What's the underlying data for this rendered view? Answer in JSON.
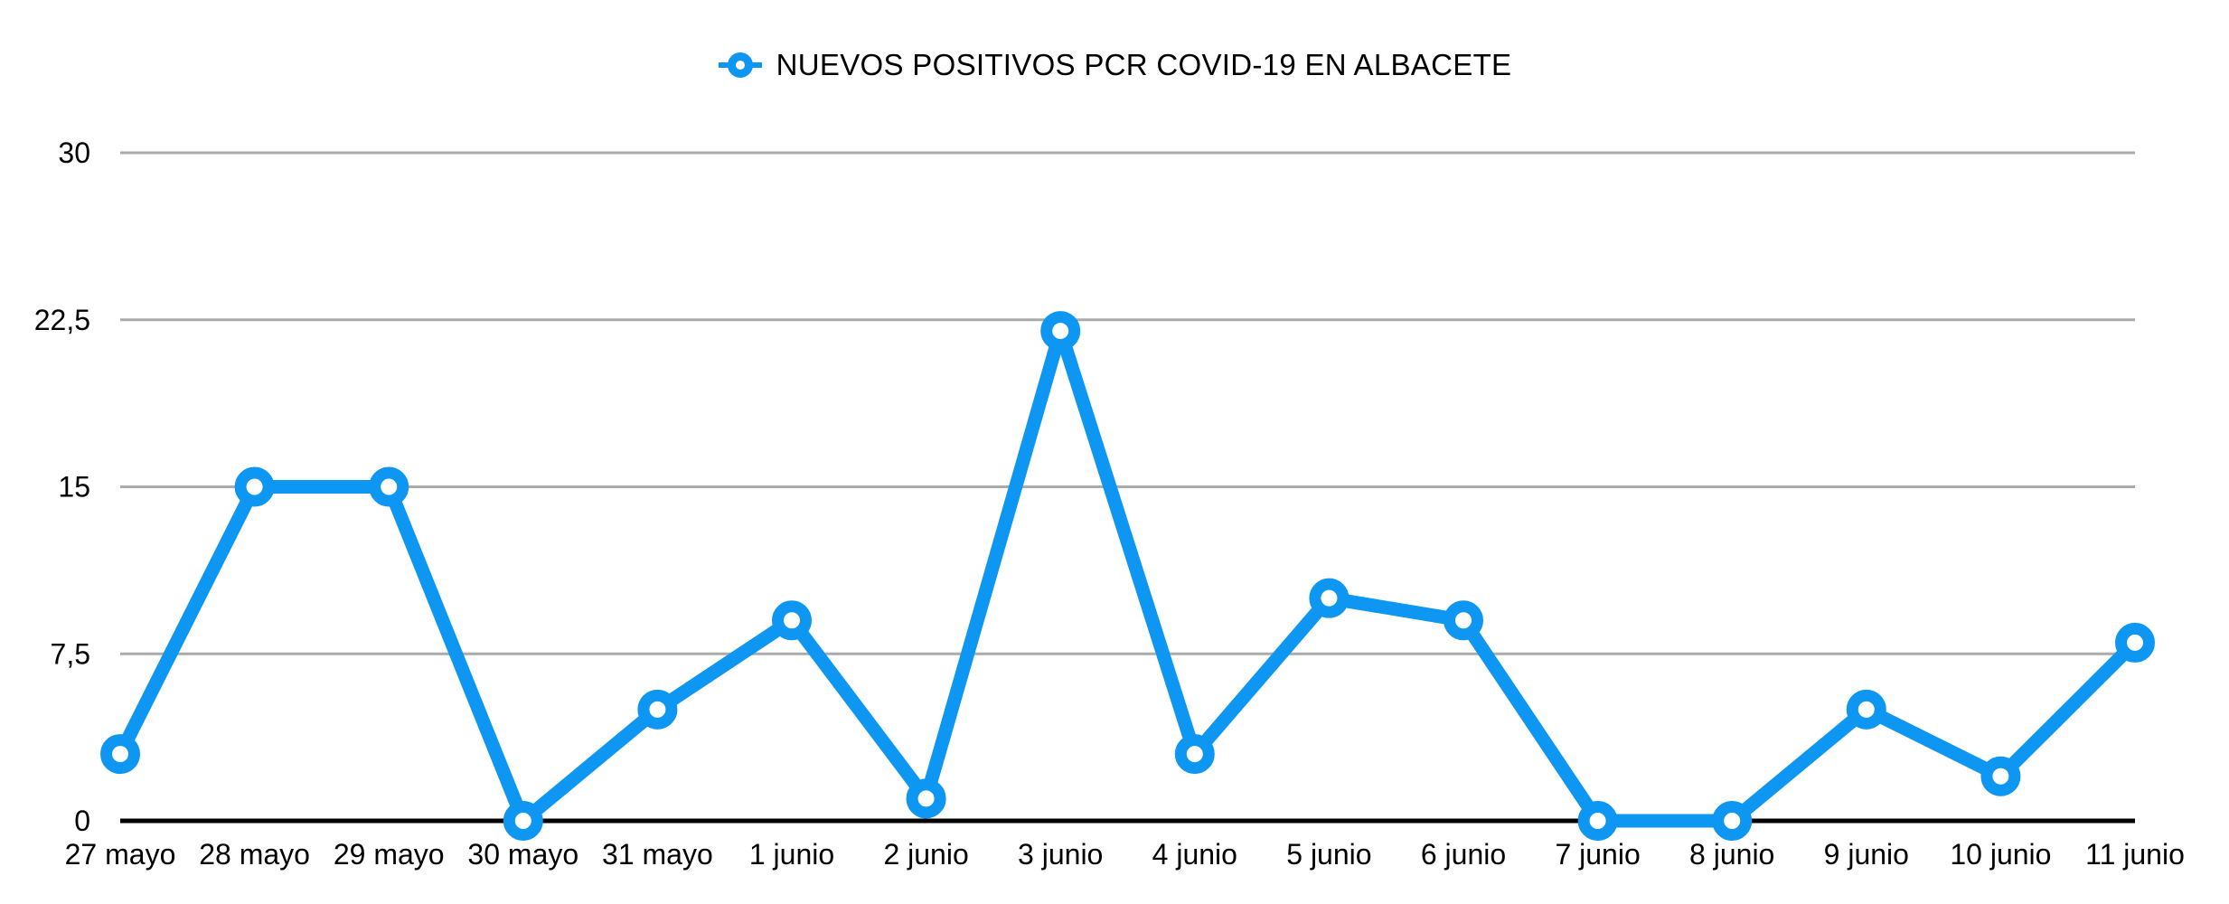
{
  "legend": {
    "label": "NUEVOS POSITIVOS PCR COVID-19 EN ALBACETE"
  },
  "chart_data": {
    "type": "line",
    "title": "NUEVOS POSITIVOS PCR COVID-19 EN ALBACETE",
    "categories": [
      "27 mayo",
      "28 mayo",
      "29 mayo",
      "30 mayo",
      "31 mayo",
      "1 junio",
      "2 junio",
      "3 junio",
      "4 junio",
      "5 junio",
      "6 junio",
      "7 junio",
      "8 junio",
      "9 junio",
      "10 junio",
      "11 junio"
    ],
    "series": [
      {
        "name": "NUEVOS POSITIVOS PCR COVID-19 EN ALBACETE",
        "values": [
          3,
          15,
          15,
          0,
          5,
          9,
          1,
          22,
          3,
          10,
          9,
          0,
          0,
          5,
          2,
          8
        ]
      }
    ],
    "xlabel": "",
    "ylabel": "",
    "ylim": [
      0,
      30
    ],
    "yticks": [
      {
        "value": 0,
        "label": "0"
      },
      {
        "value": 7.5,
        "label": "7,5"
      },
      {
        "value": 15,
        "label": "15"
      },
      {
        "value": 22.5,
        "label": "22,5"
      },
      {
        "value": 30,
        "label": "30"
      }
    ],
    "grid": true,
    "legend_position": "top-center",
    "marker_style": "open-circle",
    "colors": {
      "line": "#0d96f2",
      "marker_fill": "#ffffff",
      "gridline": "#ababab",
      "axis": "#000000",
      "text": "#000000",
      "background": "#ffffff"
    }
  }
}
